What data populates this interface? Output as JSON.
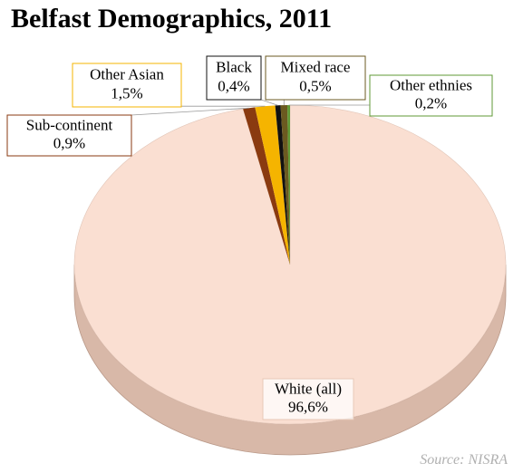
{
  "chart_data": {
    "type": "pie",
    "title": "Belfast Demographics, 2011",
    "categories": [
      "White (all)",
      "Sub-continent",
      "Other Asian",
      "Black",
      "Mixed race",
      "Other ethnies"
    ],
    "values": [
      96.6,
      0.9,
      1.5,
      0.4,
      0.5,
      0.2
    ],
    "value_labels": [
      "96,6%",
      "0,9%",
      "1,5%",
      "0,4%",
      "0,5%",
      "0,2%"
    ],
    "colors": [
      "#fadfd2",
      "#8a3a10",
      "#f5b400",
      "#111111",
      "#6b5a20",
      "#5f9a35"
    ],
    "source": "Source: NISRA"
  }
}
